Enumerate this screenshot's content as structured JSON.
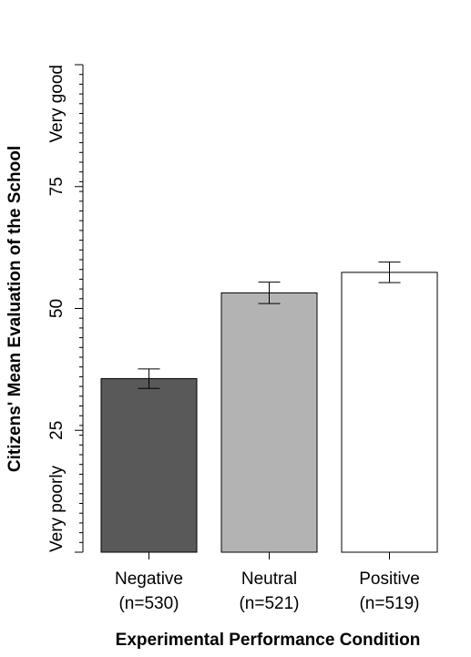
{
  "chart_data": {
    "type": "bar",
    "title": "",
    "xlabel": "Experimental Performance Condition",
    "ylabel": "Citizens' Mean Evaluation of the School",
    "ylim": [
      0,
      100
    ],
    "y_ticks": [
      {
        "value": 0,
        "label": "Very poorly"
      },
      {
        "value": 25,
        "label": "25"
      },
      {
        "value": 50,
        "label": "50"
      },
      {
        "value": 75,
        "label": "75"
      },
      {
        "value": 100,
        "label": "Very good"
      }
    ],
    "y_minor_tick_step": 2,
    "categories": [
      {
        "name": "Negative",
        "n": "(n=530)",
        "value": 35.6,
        "ci_low": 33.6,
        "ci_high": 37.6,
        "color": "#595959"
      },
      {
        "name": "Neutral",
        "n": "(n=521)",
        "value": 53.2,
        "ci_low": 51.0,
        "ci_high": 55.4,
        "color": "#b3b3b3"
      },
      {
        "name": "Positive",
        "n": "(n=519)",
        "value": 57.4,
        "ci_low": 55.3,
        "ci_high": 59.5,
        "color": "#ffffff"
      }
    ],
    "legend": "none",
    "grid": false
  }
}
